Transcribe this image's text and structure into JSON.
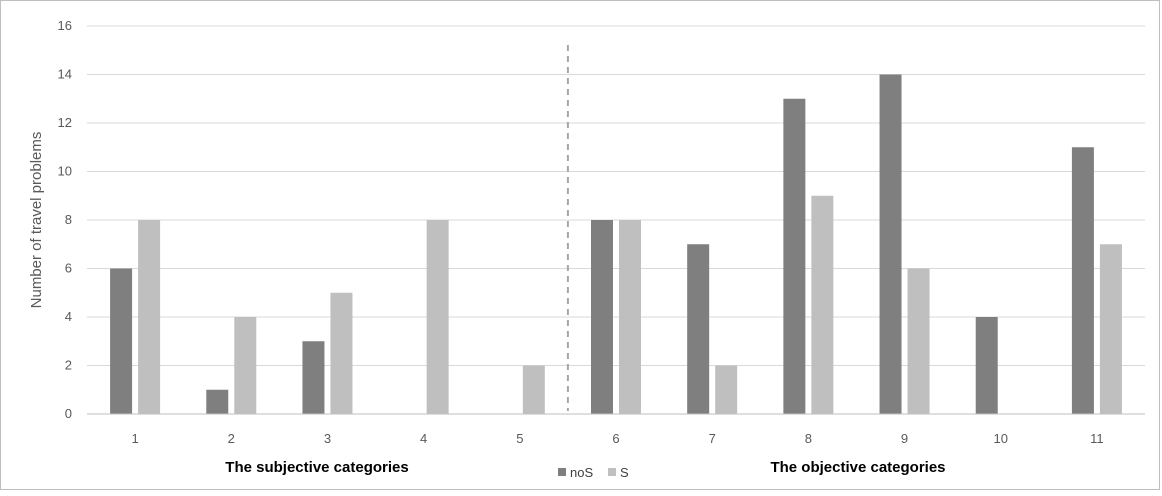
{
  "chart_data": {
    "type": "bar",
    "title": "",
    "xlabel": "",
    "ylabel": "Number of travel problems",
    "ylim": [
      0,
      16
    ],
    "yticks": [
      0,
      2,
      4,
      6,
      8,
      10,
      12,
      14,
      16
    ],
    "categories": [
      "1",
      "2",
      "3",
      "4",
      "5",
      "6",
      "7",
      "8",
      "9",
      "10",
      "11"
    ],
    "series": [
      {
        "name": "noS",
        "color": "#7f7f7f",
        "values": [
          6,
          1,
          3,
          0,
          0,
          8,
          7,
          13,
          14,
          4,
          11
        ]
      },
      {
        "name": "S",
        "color": "#bfbfbf",
        "values": [
          8,
          4,
          5,
          8,
          2,
          8,
          2,
          9,
          6,
          0,
          7
        ]
      }
    ],
    "grid": true,
    "legend_position": "bottom-center",
    "group_labels": [
      "The subjective categories",
      "The objective categories"
    ],
    "divider_between": [
      "5",
      "6"
    ]
  }
}
